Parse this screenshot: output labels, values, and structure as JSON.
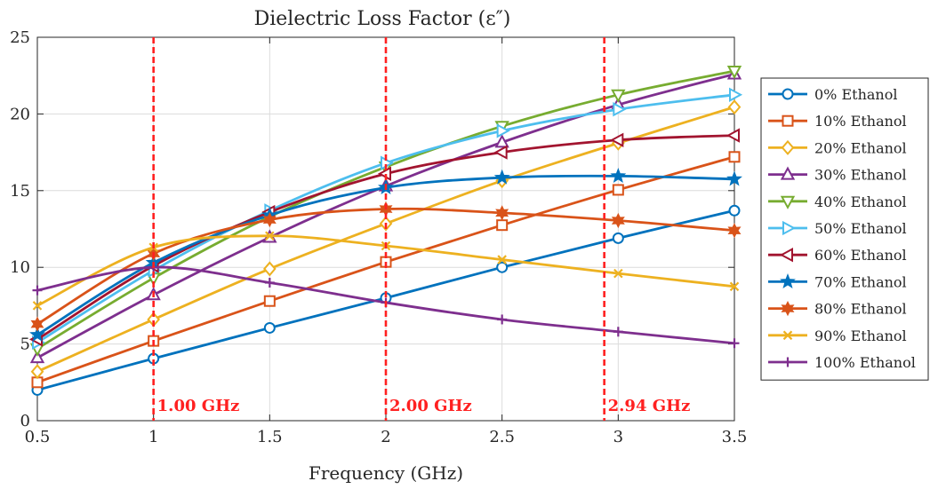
{
  "chart_data": {
    "type": "line",
    "title": "Dielectric Loss Factor (ε″)",
    "xlabel": "Frequency (GHz)",
    "ylabel": "",
    "xlim": [
      0.5,
      3.5
    ],
    "ylim": [
      0,
      25
    ],
    "xticks": [
      0.5,
      1,
      1.5,
      2,
      2.5,
      3,
      3.5
    ],
    "xtick_labels": [
      "0.5",
      "1",
      "1.5",
      "2",
      "2.5",
      "3",
      "3.5"
    ],
    "yticks": [
      0,
      5,
      10,
      15,
      20,
      25
    ],
    "ytick_labels": [
      "0",
      "5",
      "10",
      "15",
      "20",
      "25"
    ],
    "grid": true,
    "legend_position": "outside-right",
    "x": [
      0.5,
      1,
      1.5,
      2,
      2.5,
      3,
      3.5
    ],
    "series": [
      {
        "name": "0% Ethanol",
        "color": "#0072BD",
        "marker": "circle",
        "values": [
          2.0,
          4.05,
          6.05,
          8.0,
          10.0,
          11.9,
          13.7
        ]
      },
      {
        "name": "10% Ethanol",
        "color": "#D95319",
        "marker": "square",
        "values": [
          2.5,
          5.2,
          7.8,
          10.35,
          12.75,
          15.05,
          17.2
        ]
      },
      {
        "name": "20% Ethanol",
        "color": "#EDB120",
        "marker": "diamond",
        "values": [
          3.2,
          6.6,
          9.9,
          12.85,
          15.65,
          18.1,
          20.45
        ]
      },
      {
        "name": "30% Ethanol",
        "color": "#7E2F8E",
        "marker": "triangle-up",
        "values": [
          4.1,
          8.2,
          11.95,
          15.3,
          18.15,
          20.6,
          22.6
        ]
      },
      {
        "name": "40% Ethanol",
        "color": "#77AC30",
        "marker": "triangle-down",
        "values": [
          4.7,
          9.3,
          13.3,
          16.55,
          19.2,
          21.25,
          22.8
        ]
      },
      {
        "name": "50% Ethanol",
        "color": "#4DBEEE",
        "marker": "triangle-right",
        "values": [
          5.1,
          9.8,
          13.7,
          16.8,
          18.9,
          20.3,
          21.25
        ]
      },
      {
        "name": "60% Ethanol",
        "color": "#A2142F",
        "marker": "triangle-left",
        "values": [
          5.3,
          10.1,
          13.6,
          16.1,
          17.5,
          18.3,
          18.6
        ]
      },
      {
        "name": "70% Ethanol",
        "color": "#0072BD",
        "marker": "pentagram",
        "values": [
          5.6,
          10.3,
          13.4,
          15.2,
          15.85,
          15.95,
          15.75
        ]
      },
      {
        "name": "80% Ethanol",
        "color": "#D95319",
        "marker": "hexagram",
        "values": [
          6.3,
          10.9,
          13.1,
          13.8,
          13.55,
          13.05,
          12.4
        ]
      },
      {
        "name": "90% Ethanol",
        "color": "#EDB120",
        "marker": "x",
        "values": [
          7.5,
          11.3,
          12.05,
          11.4,
          10.5,
          9.6,
          8.75
        ]
      },
      {
        "name": "100% Ethanol",
        "color": "#7E2F8E",
        "marker": "plus",
        "values": [
          8.5,
          10.0,
          9.0,
          7.7,
          6.6,
          5.8,
          5.05
        ]
      }
    ],
    "vlines": [
      {
        "x": 1.0,
        "label": "1.00 GHz",
        "color": "#ff2020"
      },
      {
        "x": 2.0,
        "label": "2.00 GHz",
        "color": "#ff2020"
      },
      {
        "x": 2.94,
        "label": "2.94 GHz",
        "color": "#ff2020"
      }
    ]
  }
}
